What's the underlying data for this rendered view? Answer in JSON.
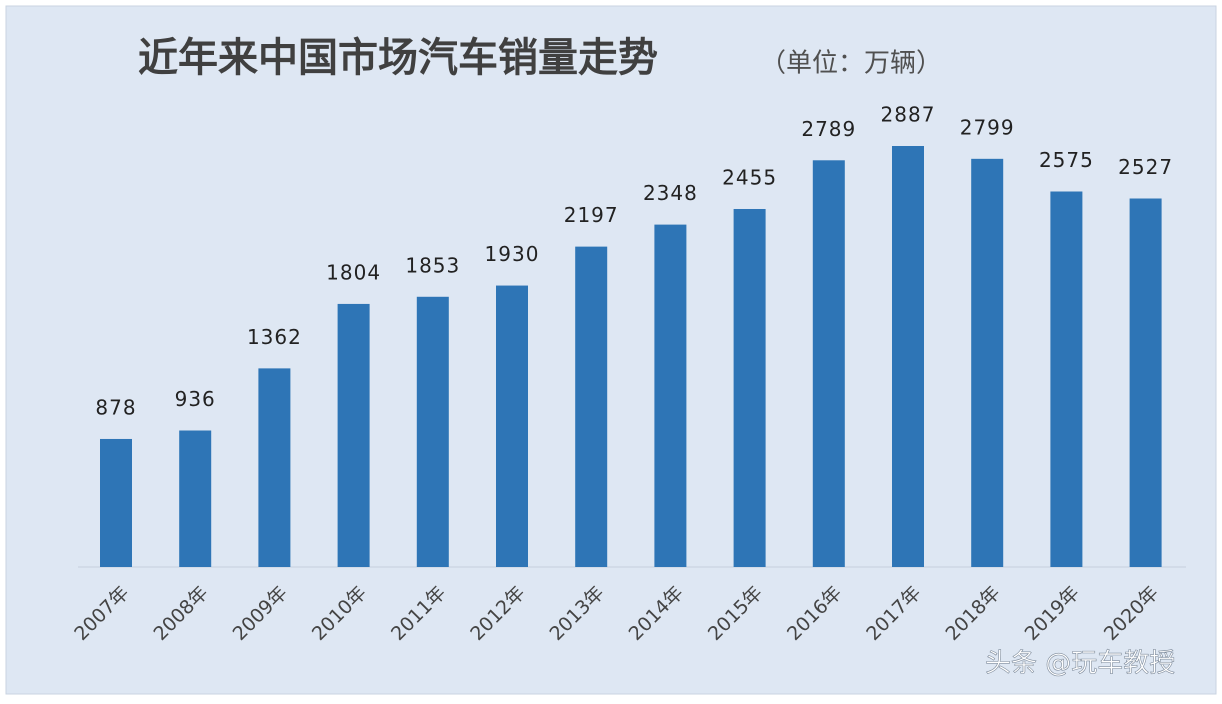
{
  "chart_data": {
    "type": "bar",
    "title": "近年来中国市场汽车销量走势",
    "subtitle": "（单位：万辆）",
    "categories": [
      "2007年",
      "2008年",
      "2009年",
      "2010年",
      "2011年",
      "2012年",
      "2013年",
      "2014年",
      "2015年",
      "2016年",
      "2017年",
      "2018年",
      "2019年",
      "2020年"
    ],
    "values": [
      878,
      936,
      1362,
      1804,
      1853,
      1930,
      2197,
      2348,
      2455,
      2789,
      2887,
      2799,
      2575,
      2527
    ],
    "color": "#2e75b6",
    "grid": false,
    "annotation": "头条 @玩车教授"
  }
}
